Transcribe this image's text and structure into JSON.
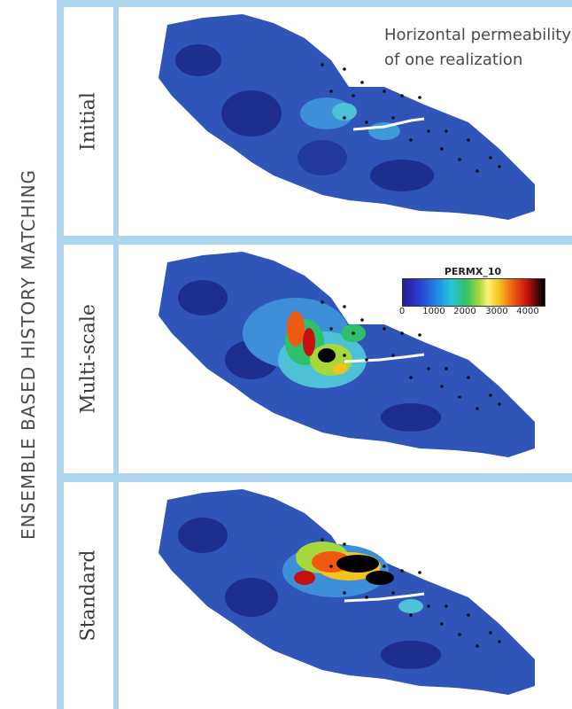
{
  "outer_title": "ENSEMBLE BASED HISTORY MATCHING",
  "rows": [
    {
      "label": "Initial"
    },
    {
      "label": "Multi-scale"
    },
    {
      "label": "Standard"
    }
  ],
  "annotation": {
    "line1": "Horizontal permeability",
    "line2": "of one realization"
  },
  "colorbar": {
    "title": "PERMX_10",
    "ticks": [
      "0",
      "1000",
      "2000",
      "3000",
      "4000"
    ],
    "range": [
      0,
      4500
    ],
    "colors": [
      "#2b1a8f",
      "#1e88e6",
      "#2fbf6a",
      "#fff27a",
      "#ee5a12",
      "#c41010",
      "#000000"
    ]
  },
  "colors": {
    "frame": "#aed5ee",
    "reservoir_base": "#2f55b8",
    "reservoir_dark": "#1d2e8c",
    "fault": "#ffffff",
    "well": "#0d0d0d"
  }
}
